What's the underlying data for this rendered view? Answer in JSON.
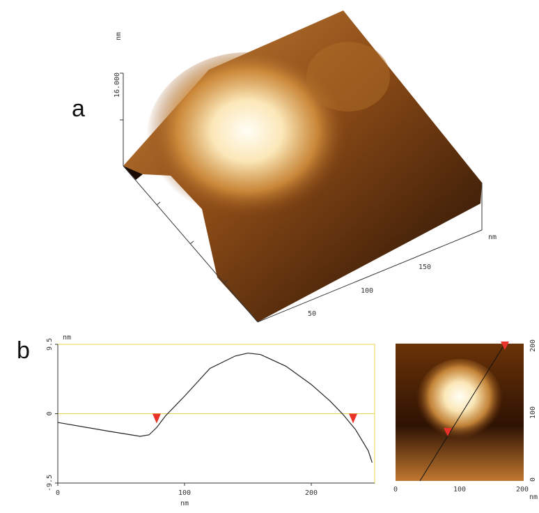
{
  "panel_a": {
    "label": "a",
    "z_unit": "nm",
    "z_tick": "16.000",
    "xy_unit": "nm",
    "xy_ticks": [
      "50",
      "100",
      "150"
    ]
  },
  "chart_data": {
    "type": "line",
    "panel_label": "b",
    "y_label": "nm",
    "x_label": "nm",
    "x": [
      0,
      40,
      65,
      72,
      78,
      85,
      100,
      120,
      140,
      150,
      160,
      180,
      200,
      215,
      225,
      235,
      245,
      248
    ],
    "series": [
      {
        "color": "#222222",
        "values": [
          -1.2,
          -2.4,
          -3.1,
          -2.9,
          -1.9,
          -0.3,
          2.4,
          6.2,
          7.9,
          8.3,
          8.1,
          6.5,
          4.0,
          1.7,
          -0.1,
          -2.2,
          -5.1,
          -6.7
        ]
      }
    ],
    "cursor_x": [
      78,
      233
    ],
    "cursor_color": "#e8322a",
    "xlim": [
      0,
      250
    ],
    "ylim": [
      -9.5,
      9.5
    ],
    "xticks": [
      0,
      100,
      200
    ],
    "yticks": [
      9.5,
      0,
      -9.5
    ],
    "frame_color": "#e8d44a"
  },
  "panel_b_image": {
    "right_ticks": [
      "200",
      "100",
      "0"
    ],
    "bottom_ticks": [
      "0",
      "100",
      "200"
    ],
    "unit": "nm"
  }
}
